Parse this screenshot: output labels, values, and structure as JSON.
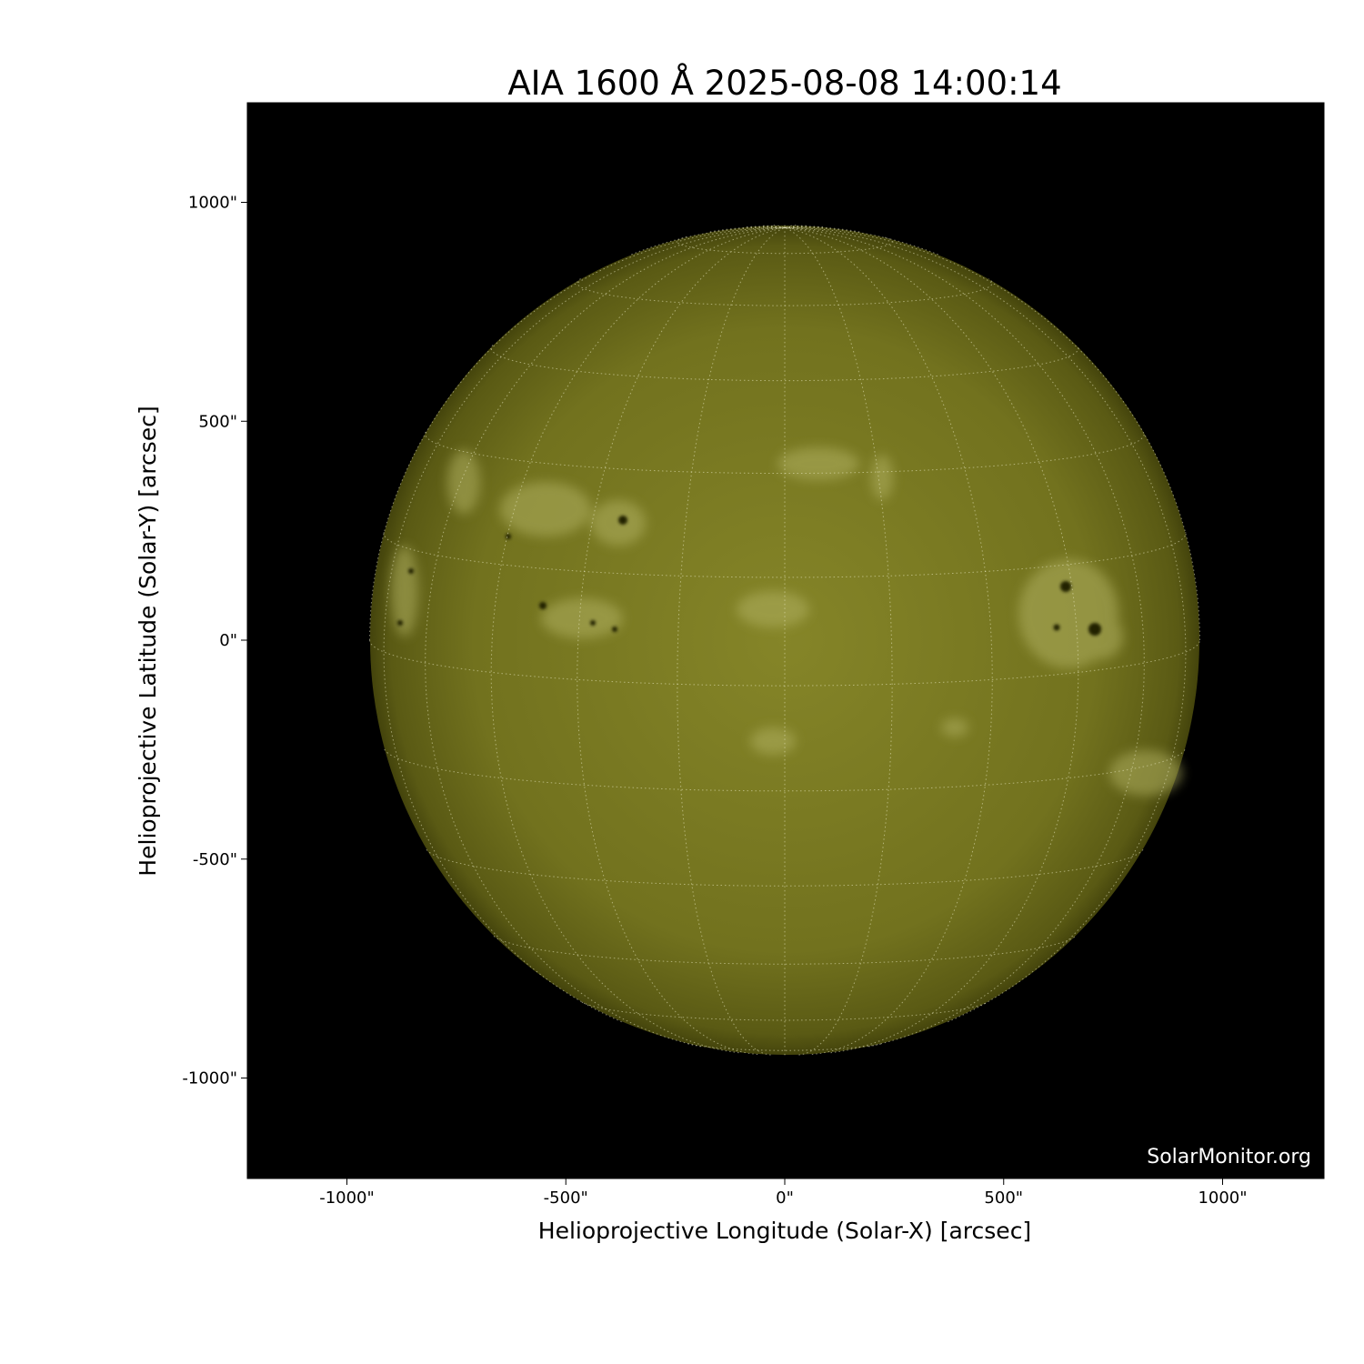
{
  "title": "AIA 1600 Å 2025-08-08 14:00:14",
  "title_parts": {
    "instrument": "AIA 1600",
    "unit": "Å",
    "datetime": "2025-08-08 14:00:14"
  },
  "xlabel": "Helioprojective Longitude (Solar-X) [arcsec]",
  "ylabel": "Helioprojective Latitude (Solar-Y) [arcsec]",
  "watermark": "SolarMonitor.org",
  "axes": {
    "xlim": [
      -1230,
      1230
    ],
    "ylim": [
      -1230,
      1230
    ],
    "xticks": [
      {
        "v": -1000,
        "label": "-1000\""
      },
      {
        "v": -500,
        "label": "-500\""
      },
      {
        "v": 0,
        "label": "0\""
      },
      {
        "v": 500,
        "label": "500\""
      },
      {
        "v": 1000,
        "label": "1000\""
      }
    ],
    "yticks": [
      {
        "v": 1000,
        "label": "1000\""
      },
      {
        "v": 500,
        "label": "500\""
      },
      {
        "v": 0,
        "label": "0\""
      },
      {
        "v": -500,
        "label": "-500\""
      },
      {
        "v": -1000,
        "label": "-1000\""
      }
    ]
  },
  "image": {
    "solar_radius_arcsec": 948,
    "grid_spacing_deg": 15,
    "colors": {
      "background": "#000000",
      "disk_center": "#858528",
      "disk_limb": "#4a4a0e",
      "plage": "#b8b868",
      "grid": "#e8e8c0"
    }
  }
}
